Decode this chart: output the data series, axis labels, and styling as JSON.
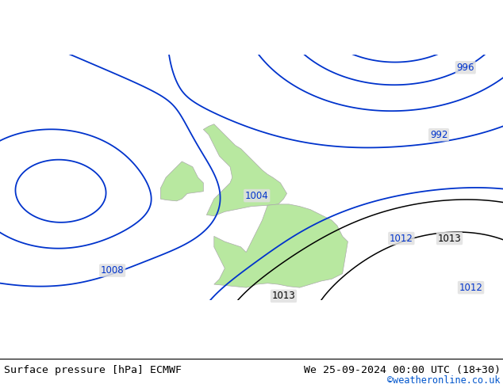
{
  "title_left": "Surface pressure [hPa] ECMWF",
  "title_right": "We 25-09-2024 00:00 UTC (18+30)",
  "copyright": "©weatheronline.co.uk",
  "background_color": "#e0e0e0",
  "land_color": "#b8e8a0",
  "border_color": "#aaaaaa",
  "contour_color_blue": "#0033cc",
  "contour_color_black": "#000000",
  "lon_min": -25,
  "lon_max": 22,
  "lat_min": 42,
  "lat_max": 65,
  "figwidth": 6.34,
  "figheight": 4.9,
  "dpi": 100
}
